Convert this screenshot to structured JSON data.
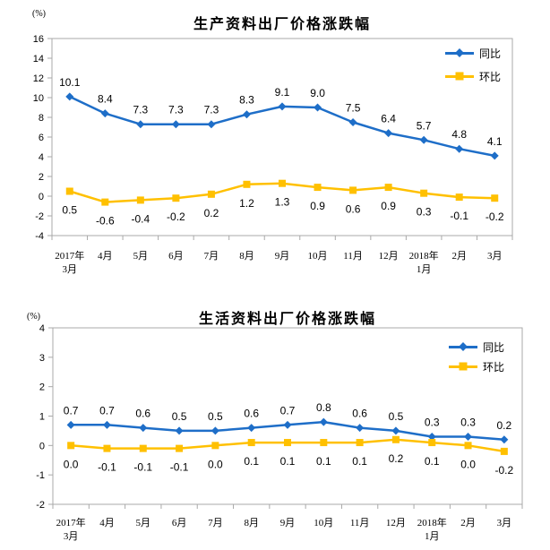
{
  "colors": {
    "background": "#FFFFFF",
    "axis_line": "#A9A9A9",
    "text": "#000000",
    "series_blue": "#1E6EC8",
    "series_gold": "#FFC000"
  },
  "chart_data": [
    {
      "type": "line",
      "title": "生产资料出厂价格涨跌幅",
      "unit_label": "(%)",
      "categories": [
        "2017年\n3月",
        "4月",
        "5月",
        "6月",
        "7月",
        "8月",
        "9月",
        "10月",
        "11月",
        "12月",
        "2018年\n1月",
        "2月",
        "3月"
      ],
      "ylim": [
        -4,
        16
      ],
      "yticks": [
        16,
        14,
        12,
        10,
        8,
        6,
        4,
        2,
        0,
        -2,
        -4
      ],
      "grid": false,
      "legend_position": "top-right",
      "series": [
        {
          "name": "同比",
          "color": "#1E6EC8",
          "marker": "diamond",
          "label_position": "above",
          "values": [
            10.1,
            8.4,
            7.3,
            7.3,
            7.3,
            8.3,
            9.1,
            9.0,
            7.5,
            6.4,
            5.7,
            4.8,
            4.1
          ]
        },
        {
          "name": "环比",
          "color": "#FFC000",
          "marker": "square",
          "label_position": "below",
          "values": [
            0.5,
            -0.6,
            -0.4,
            -0.2,
            0.2,
            1.2,
            1.3,
            0.9,
            0.6,
            0.9,
            0.3,
            -0.1,
            -0.2
          ]
        }
      ]
    },
    {
      "type": "line",
      "title": "生活资料出厂价格涨跌幅",
      "unit_label": "(%)",
      "categories": [
        "2017年\n3月",
        "4月",
        "5月",
        "6月",
        "7月",
        "8月",
        "9月",
        "10月",
        "11月",
        "12月",
        "2018年\n1月",
        "2月",
        "3月"
      ],
      "ylim": [
        -2,
        4
      ],
      "yticks": [
        4,
        3,
        2,
        1,
        0,
        -1,
        -2
      ],
      "grid": false,
      "legend_position": "top-right",
      "series": [
        {
          "name": "同比",
          "color": "#1E6EC8",
          "marker": "diamond",
          "label_position": "above",
          "values": [
            0.7,
            0.7,
            0.6,
            0.5,
            0.5,
            0.6,
            0.7,
            0.8,
            0.6,
            0.5,
            0.3,
            0.3,
            0.2
          ]
        },
        {
          "name": "环比",
          "color": "#FFC000",
          "marker": "square",
          "label_position": "below",
          "values": [
            0.0,
            -0.1,
            -0.1,
            -0.1,
            0.0,
            0.1,
            0.1,
            0.1,
            0.1,
            0.2,
            0.1,
            0.0,
            -0.2
          ]
        }
      ]
    }
  ]
}
